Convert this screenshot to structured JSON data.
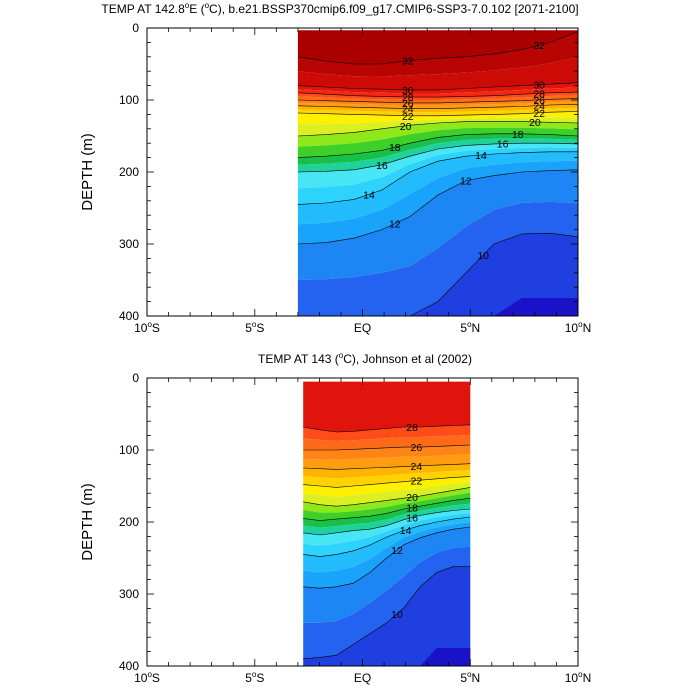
{
  "chart_data": [
    {
      "type": "contour",
      "title": "TEMP AT 142.8°E (°C), b.e21.BSSP370cmip6.f09_g17.CMIP6-SSP3-7.0.102 [2071-2100]",
      "title_prefix": "TEMP AT 142.8",
      "title_deg": "o",
      "title_mid": "E (",
      "title_deg2": "o",
      "title_rest": "C), b.e21.BSSP370cmip6.f09_g17.CMIP6-SSP3-7.0.102 [2071-2100]",
      "xlabel": "",
      "ylabel": "DEPTH (m)",
      "xlim": [
        -10,
        10
      ],
      "ylim": [
        400,
        0
      ],
      "x_ticks": [
        {
          "value": -10,
          "num": "10",
          "deg": "o",
          "hem": "S"
        },
        {
          "value": -5,
          "num": "5",
          "deg": "o",
          "hem": "S"
        },
        {
          "value": 0,
          "num": "EQ",
          "deg": "",
          "hem": ""
        },
        {
          "value": 5,
          "num": "5",
          "deg": "o",
          "hem": "N"
        },
        {
          "value": 10,
          "num": "10",
          "deg": "o",
          "hem": "N"
        }
      ],
      "y_ticks": [
        0,
        100,
        200,
        300,
        400
      ],
      "data_x_range": [
        -3.0,
        10
      ],
      "colorbar": "rainbow (blue = cold, red = warm)",
      "isotherm_depths": [
        {
          "temp": 32,
          "depth_m": [
            40,
            46,
            50,
            50,
            45,
            42,
            40,
            36,
            30,
            20,
            5
          ],
          "label_x": [
            2.1,
            8.2
          ]
        },
        {
          "temp": 30,
          "depth_m": [
            80,
            82,
            84,
            85,
            86,
            86,
            84,
            82,
            80,
            78,
            76
          ],
          "label_x": [
            2.1,
            8.2
          ]
        },
        {
          "temp": 28,
          "depth_m": [
            90,
            92,
            94,
            95,
            96,
            96,
            95,
            94,
            92,
            90,
            89
          ],
          "label_x": [
            2.1,
            8.2
          ]
        },
        {
          "temp": 26,
          "depth_m": [
            100,
            101,
            102,
            103,
            104,
            104,
            103,
            102,
            101,
            99,
            98
          ],
          "label_x": [
            2.1,
            8.2
          ]
        },
        {
          "temp": 24,
          "depth_m": [
            108,
            109,
            110,
            111,
            112,
            112,
            111,
            110,
            109,
            107,
            106
          ],
          "label_x": [
            2.1,
            8.2
          ]
        },
        {
          "temp": 22,
          "depth_m": [
            118,
            119,
            120,
            121,
            122,
            122,
            121,
            120,
            119,
            117,
            116
          ],
          "label_x": [
            2.1,
            8.2
          ]
        },
        {
          "temp": 20,
          "depth_m": [
            150,
            148,
            145,
            140,
            135,
            132,
            130,
            130,
            130,
            131,
            132
          ],
          "label_x": [
            2.0,
            8.0
          ]
        },
        {
          "temp": 18,
          "depth_m": [
            180,
            178,
            175,
            170,
            160,
            152,
            148,
            147,
            147,
            148,
            150
          ],
          "label_x": [
            1.5,
            7.2
          ]
        },
        {
          "temp": 16,
          "depth_m": [
            200,
            199,
            197,
            190,
            178,
            168,
            163,
            161,
            160,
            160,
            161
          ],
          "label_x": [
            0.9,
            6.5
          ]
        },
        {
          "temp": 14,
          "depth_m": [
            245,
            243,
            238,
            225,
            200,
            185,
            178,
            175,
            173,
            172,
            172
          ],
          "label_x": [
            0.3,
            5.5
          ]
        },
        {
          "temp": 12,
          "depth_m": [
            300,
            298,
            292,
            280,
            262,
            232,
            212,
            205,
            200,
            198,
            197
          ],
          "label_x": [
            1.5,
            4.8
          ]
        },
        {
          "temp": 10,
          "depth_m": [
            400,
            400,
            400,
            400,
            400,
            380,
            340,
            300,
            286,
            285,
            290
          ],
          "label_x": [
            5.6
          ]
        }
      ]
    },
    {
      "type": "contour",
      "title": "TEMP AT 143 (°C), Johnson et al (2002)",
      "title_prefix": "TEMP AT 143 (",
      "title_deg": "o",
      "title_rest": "C), Johnson et al (2002)",
      "xlabel": "",
      "ylabel": "DEPTH (m)",
      "xlim": [
        -10,
        10
      ],
      "ylim": [
        400,
        0
      ],
      "x_ticks": [
        {
          "value": -10,
          "num": "10",
          "deg": "o",
          "hem": "S"
        },
        {
          "value": -5,
          "num": "5",
          "deg": "o",
          "hem": "S"
        },
        {
          "value": 0,
          "num": "EQ",
          "deg": "",
          "hem": ""
        },
        {
          "value": 5,
          "num": "5",
          "deg": "o",
          "hem": "N"
        },
        {
          "value": 10,
          "num": "10",
          "deg": "o",
          "hem": "N"
        }
      ],
      "y_ticks": [
        0,
        100,
        200,
        300,
        400
      ],
      "data_x_range": [
        -2.75,
        5
      ],
      "colorbar": "rainbow (blue = cold, red = warm)",
      "isotherm_depths": [
        {
          "temp": 28,
          "depth_m": [
            68,
            72,
            75,
            74,
            72,
            70,
            68,
            68,
            67,
            66,
            65
          ],
          "label_x": [
            2.3
          ]
        },
        {
          "temp": 26,
          "depth_m": [
            100,
            100,
            100,
            99,
            98,
            97,
            96,
            96,
            95,
            94,
            93
          ],
          "label_x": [
            2.5
          ]
        },
        {
          "temp": 24,
          "depth_m": [
            125,
            126,
            127,
            126,
            125,
            124,
            123,
            122,
            121,
            120,
            119
          ],
          "label_x": [
            2.5
          ]
        },
        {
          "temp": 22,
          "depth_m": [
            148,
            150,
            152,
            150,
            148,
            146,
            144,
            142,
            140,
            138,
            137
          ],
          "label_x": [
            2.5
          ]
        },
        {
          "temp": 20,
          "depth_m": [
            172,
            176,
            178,
            176,
            173,
            170,
            167,
            164,
            160,
            156,
            152
          ],
          "label_x": [
            2.3
          ]
        },
        {
          "temp": 18,
          "depth_m": [
            195,
            198,
            196,
            194,
            192,
            188,
            182,
            178,
            174,
            170,
            167
          ],
          "label_x": [
            2.3
          ]
        },
        {
          "temp": 16,
          "depth_m": [
            215,
            218,
            215,
            212,
            210,
            205,
            197,
            191,
            187,
            184,
            182
          ],
          "label_x": [
            2.3
          ]
        },
        {
          "temp": 14,
          "depth_m": [
            245,
            248,
            245,
            240,
            232,
            221,
            212,
            205,
            200,
            196,
            193
          ],
          "label_x": [
            2.0
          ]
        },
        {
          "temp": 12,
          "depth_m": [
            290,
            292,
            290,
            285,
            270,
            250,
            232,
            222,
            215,
            210,
            207
          ],
          "label_x": [
            1.6
          ]
        },
        {
          "temp": 10,
          "depth_m": [
            390,
            388,
            385,
            370,
            355,
            340,
            320,
            290,
            270,
            262,
            262
          ],
          "label_x": [
            1.6
          ]
        }
      ]
    }
  ]
}
